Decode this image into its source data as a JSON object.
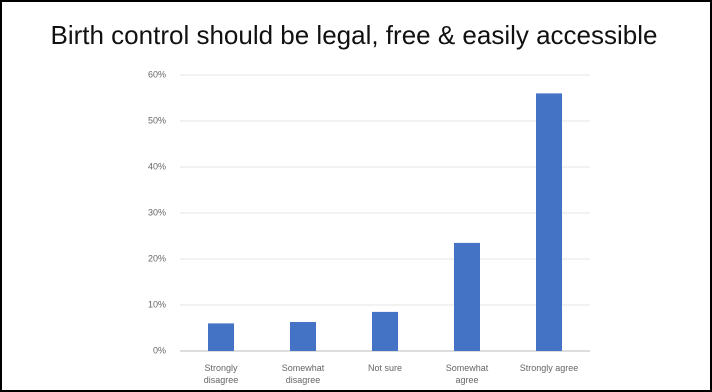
{
  "chart_data": {
    "type": "bar",
    "title": "Birth control should be legal, free & easily accessible",
    "categories": [
      "Strongly\ndisagree",
      "Somewhat\ndisagree",
      "Not sure",
      "Somewhat\nagree",
      "Strongly agree"
    ],
    "values": [
      6,
      6.3,
      8.5,
      23.5,
      56
    ],
    "color": "#4472c4",
    "ylim": [
      0,
      60
    ],
    "yticks": [
      {
        "value": 0,
        "label": "0%"
      },
      {
        "value": 10,
        "label": "10%"
      },
      {
        "value": 20,
        "label": "20%"
      },
      {
        "value": 30,
        "label": "30%"
      },
      {
        "value": 40,
        "label": "40%"
      },
      {
        "value": 50,
        "label": "50%"
      },
      {
        "value": 60,
        "label": "60%"
      }
    ],
    "grid": true
  }
}
